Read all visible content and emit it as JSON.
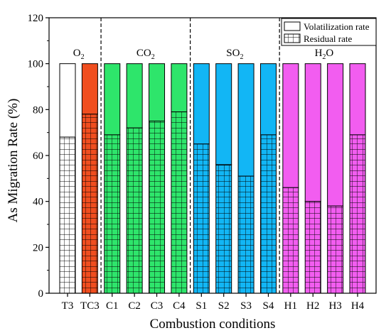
{
  "chart_data": {
    "type": "bar",
    "title": "",
    "xlabel": "Combustion conditions",
    "ylabel": "As Migration Rate (%)",
    "ylim": [
      0,
      120
    ],
    "yticks": [
      0,
      20,
      40,
      60,
      80,
      100,
      120
    ],
    "grid": false,
    "legend_position": "top-right",
    "categories": [
      "T3",
      "TC3",
      "C1",
      "C2",
      "C3",
      "C4",
      "S1",
      "S2",
      "S3",
      "S4",
      "H1",
      "H2",
      "H3",
      "H4"
    ],
    "series": [
      {
        "name": "Residual rate",
        "values": [
          68,
          78,
          69,
          72,
          75,
          79,
          65,
          56,
          51,
          69,
          46,
          40,
          38,
          69
        ],
        "pattern": "grid"
      },
      {
        "name": "Volatilization rate",
        "values": [
          32,
          22,
          31,
          28,
          25,
          21,
          35,
          44,
          49,
          31,
          54,
          60,
          62,
          31
        ],
        "pattern": "solid"
      }
    ],
    "bar_colors": [
      "#ffffff",
      "#f04e1f",
      "#2ee56b",
      "#2ee56b",
      "#2ee56b",
      "#2ee56b",
      "#12b6f5",
      "#12b6f5",
      "#12b6f5",
      "#12b6f5",
      "#f25df0",
      "#f25df0",
      "#f25df0",
      "#f25df0"
    ],
    "groups": [
      {
        "label_base": "O",
        "label_sub": "2",
        "start": 0,
        "end": 1
      },
      {
        "label_base": "CO",
        "label_sub": "2",
        "start": 2,
        "end": 5
      },
      {
        "label_base": "SO",
        "label_sub": "2",
        "start": 6,
        "end": 9
      },
      {
        "label_base": "H",
        "label_sub": "2",
        "label_tail": "O",
        "start": 10,
        "end": 13
      }
    ]
  }
}
